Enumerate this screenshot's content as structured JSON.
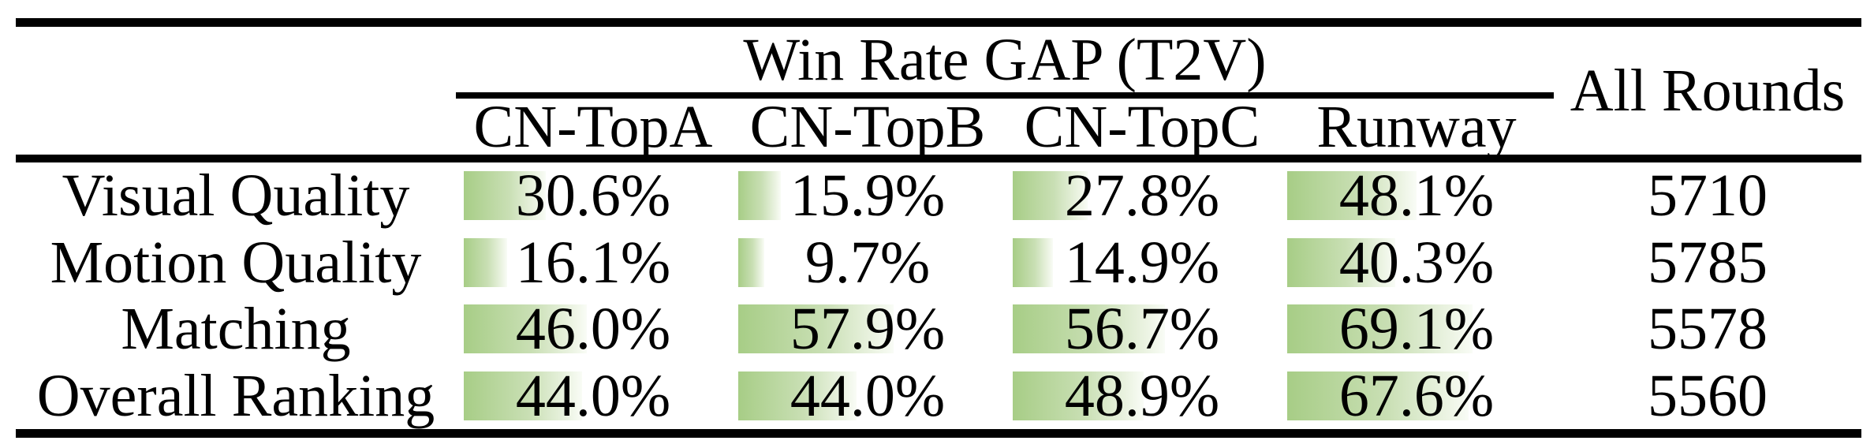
{
  "table": {
    "group_header": "Win Rate GAP (T2V)",
    "all_rounds_header": "All Rounds",
    "model_columns": [
      "CN-TopA",
      "CN-TopB",
      "CN-TopC",
      "Runway"
    ],
    "rows": [
      {
        "label": "Visual Quality",
        "cells": [
          "30.6%",
          "15.9%",
          "27.8%",
          "48.1%"
        ],
        "all_rounds": "5710"
      },
      {
        "label": "Motion Quality",
        "cells": [
          "16.1%",
          "9.7%",
          "14.9%",
          "40.3%"
        ],
        "all_rounds": "5785"
      },
      {
        "label": "Matching",
        "cells": [
          "46.0%",
          "57.9%",
          "56.7%",
          "69.1%"
        ],
        "all_rounds": "5578"
      },
      {
        "label": "Overall Ranking",
        "cells": [
          "44.0%",
          "44.0%",
          "48.9%",
          "67.6%"
        ],
        "all_rounds": "5560"
      }
    ],
    "colors": {
      "bar_green": "#a7cd86",
      "bar_fade": "#f9fcf6",
      "rule_black": "#000000"
    }
  },
  "chart_data": {
    "type": "table",
    "title": "Win Rate GAP (T2V)",
    "columns": [
      "CN-TopA",
      "CN-TopB",
      "CN-TopC",
      "Runway",
      "All Rounds"
    ],
    "row_labels": [
      "Visual Quality",
      "Motion Quality",
      "Matching",
      "Overall Ranking"
    ],
    "series": [
      {
        "name": "Visual Quality",
        "win_rate_gap_percent": [
          30.6,
          15.9,
          27.8,
          48.1
        ],
        "all_rounds": 5710
      },
      {
        "name": "Motion Quality",
        "win_rate_gap_percent": [
          16.1,
          9.7,
          14.9,
          40.3
        ],
        "all_rounds": 5785
      },
      {
        "name": "Matching",
        "win_rate_gap_percent": [
          46.0,
          57.9,
          56.7,
          69.1
        ],
        "all_rounds": 5578
      },
      {
        "name": "Overall Ranking",
        "win_rate_gap_percent": [
          44.0,
          44.0,
          48.9,
          67.6
        ],
        "all_rounds": 5560
      }
    ],
    "layout_hints": {
      "data_bars": "horizontal green gradient bars behind percentages, length proportional to value",
      "bar_color": "#a7cd86",
      "style": "booktabs-like academic table, thick top/bottom rules"
    }
  }
}
